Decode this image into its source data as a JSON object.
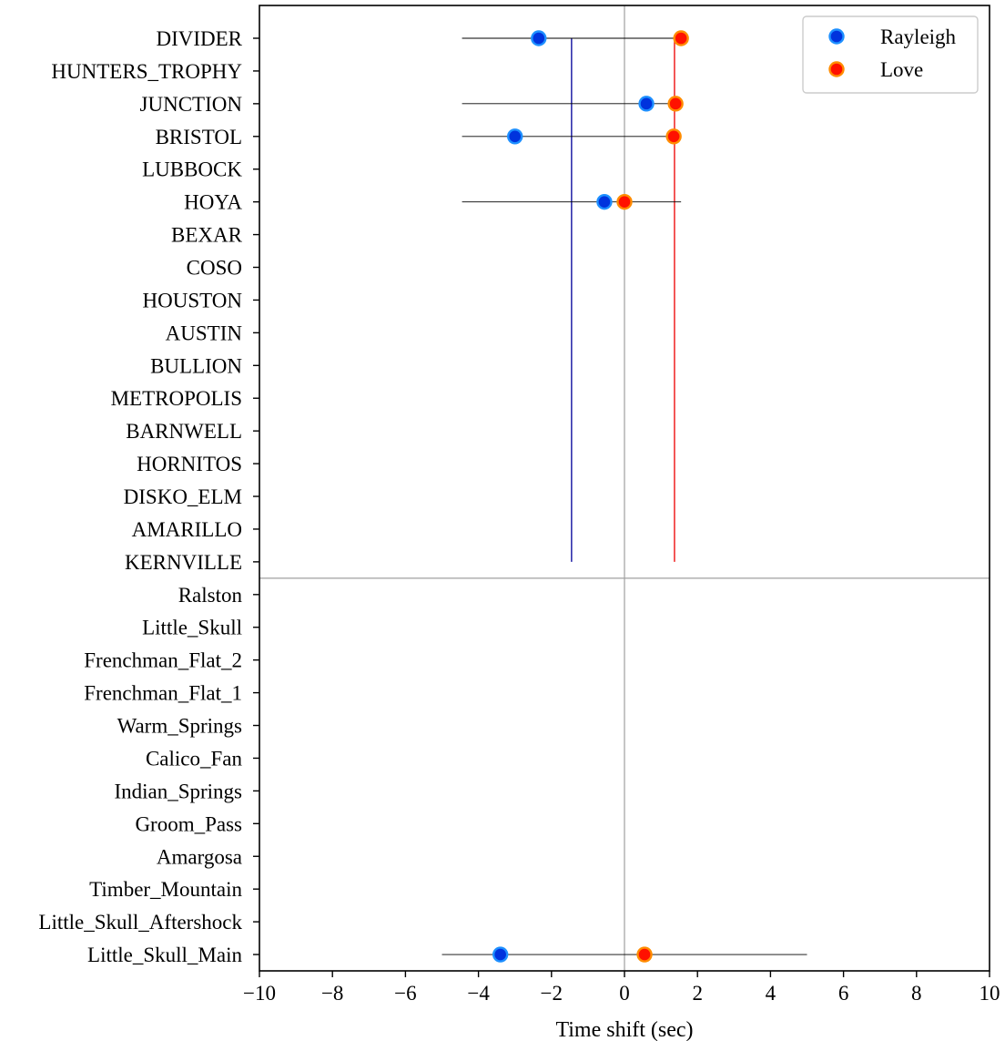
{
  "chart_data": {
    "type": "scatter",
    "xlabel": "Time shift (sec)",
    "xlim": [
      -10,
      10
    ],
    "xticks": [
      -10,
      -8,
      -6,
      -4,
      -2,
      0,
      2,
      4,
      6,
      8,
      10
    ],
    "xtick_labels": [
      "−10",
      "−8",
      "−6",
      "−4",
      "−2",
      "0",
      "2",
      "4",
      "6",
      "8",
      "10"
    ],
    "categories": [
      "DIVIDER",
      "HUNTERS_TROPHY",
      "JUNCTION",
      "BRISTOL",
      "LUBBOCK",
      "HOYA",
      "BEXAR",
      "COSO",
      "HOUSTON",
      "AUSTIN",
      "BULLION",
      "METROPOLIS",
      "BARNWELL",
      "HORNITOS",
      "DISKO_ELM",
      "AMARILLO",
      "KERNVILLE",
      "Ralston",
      "Little_Skull",
      "Frenchman_Flat_2",
      "Frenchman_Flat_1",
      "Warm_Springs",
      "Calico_Fan",
      "Indian_Springs",
      "Groom_Pass",
      "Amargosa",
      "Timber_Mountain",
      "Little_Skull_Aftershock",
      "Little_Skull_Main"
    ],
    "series": [
      {
        "name": "Rayleigh",
        "color": "#0033dd",
        "edge_color": "#1e90ff",
        "points": [
          {
            "category": "DIVIDER",
            "x": -2.35
          },
          {
            "category": "JUNCTION",
            "x": 0.6
          },
          {
            "category": "BRISTOL",
            "x": -3.0
          },
          {
            "category": "HOYA",
            "x": -0.55
          },
          {
            "category": "Little_Skull_Main",
            "x": -3.4
          }
        ]
      },
      {
        "name": "Love",
        "color": "#ff1100",
        "edge_color": "#ff8c00",
        "points": [
          {
            "category": "DIVIDER",
            "x": 1.55
          },
          {
            "category": "JUNCTION",
            "x": 1.4
          },
          {
            "category": "BRISTOL",
            "x": 1.35
          },
          {
            "category": "HOYA",
            "x": 0.0
          },
          {
            "category": "Little_Skull_Main",
            "x": 0.55
          }
        ]
      }
    ],
    "ranges": [
      {
        "category": "DIVIDER",
        "x0": -4.45,
        "x1": 1.55
      },
      {
        "category": "JUNCTION",
        "x0": -4.45,
        "x1": 1.4
      },
      {
        "category": "BRISTOL",
        "x0": -4.45,
        "x1": 1.35
      },
      {
        "category": "HOYA",
        "x0": -4.45,
        "x1": 1.55
      },
      {
        "category": "Little_Skull_Main",
        "x0": -5.0,
        "x1": 5.0
      }
    ],
    "mean_lines": [
      {
        "series": "Rayleigh",
        "x": -1.45,
        "from": "DIVIDER",
        "to": "KERNVILLE",
        "color": "#1010a0"
      },
      {
        "series": "Love",
        "x": 1.37,
        "from": "DIVIDER",
        "to": "KERNVILLE",
        "color": "#ee1111"
      }
    ],
    "reference_lines": [
      {
        "orientation": "vertical",
        "x": 0,
        "color": "#a0a0a0"
      },
      {
        "orientation": "horizontal",
        "between": [
          "KERNVILLE",
          "Ralston"
        ],
        "color": "#a0a0a0"
      }
    ],
    "legend": {
      "placement": "top-right",
      "entries": [
        "Rayleigh",
        "Love"
      ]
    },
    "grid": false
  }
}
